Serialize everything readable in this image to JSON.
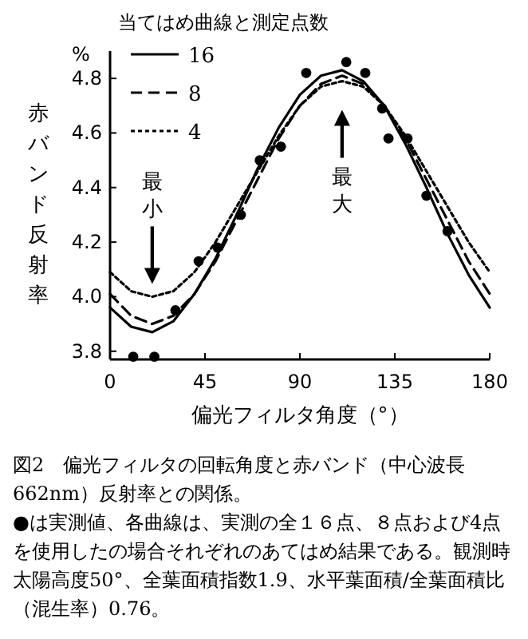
{
  "chart_data": {
    "type": "line",
    "legend_title": "当てはめ曲線と測定点数",
    "ylabel": "赤バンド反射率",
    "xlabel": "偏光フィルタ角度（°）",
    "x": [
      0,
      10,
      20,
      30,
      40,
      50,
      60,
      70,
      80,
      90,
      100,
      110,
      120,
      130,
      140,
      150,
      160,
      170,
      180
    ],
    "series": [
      {
        "name": "16",
        "color": "#000000",
        "line_style": "solid",
        "values": [
          3.96,
          3.89,
          3.87,
          3.91,
          4.01,
          4.14,
          4.3,
          4.47,
          4.62,
          4.74,
          4.81,
          4.83,
          4.79,
          4.7,
          4.56,
          4.4,
          4.23,
          4.08,
          3.96
        ]
      },
      {
        "name": "8",
        "color": "#000000",
        "line_style": "dashed",
        "values": [
          4.01,
          3.93,
          3.9,
          3.93,
          4.01,
          4.13,
          4.28,
          4.43,
          4.58,
          4.7,
          4.78,
          4.81,
          4.78,
          4.7,
          4.58,
          4.43,
          4.28,
          4.13,
          4.01
        ]
      },
      {
        "name": "4",
        "color": "#000000",
        "line_style": "dotted",
        "values": [
          4.09,
          4.02,
          4.0,
          4.02,
          4.09,
          4.2,
          4.33,
          4.46,
          4.59,
          4.7,
          4.77,
          4.79,
          4.77,
          4.7,
          4.59,
          4.46,
          4.33,
          4.2,
          4.09
        ]
      },
      {
        "type": "scatter",
        "color": "#000000",
        "marker": "circle",
        "x": [
          11,
          21,
          31,
          42,
          51,
          62,
          71,
          81,
          93,
          112,
          121,
          129,
          132,
          141,
          150,
          160
        ],
        "values": [
          3.78,
          3.78,
          3.95,
          4.13,
          4.18,
          4.3,
          4.5,
          4.55,
          4.82,
          4.86,
          4.82,
          4.69,
          4.58,
          4.58,
          4.37,
          4.24
        ]
      }
    ],
    "xlim": [
      0,
      180
    ],
    "xticks": [
      0,
      45,
      90,
      135,
      180
    ],
    "ylim": [
      3.77,
      4.9
    ],
    "yticks": [
      {
        "value": 3.8,
        "label": "3.8"
      },
      {
        "value": 4.0,
        "label": "4.0"
      },
      {
        "value": 4.2,
        "label": "4.2"
      },
      {
        "value": 4.4,
        "label": "4.4"
      },
      {
        "value": 4.6,
        "label": "4.6"
      },
      {
        "value": 4.8,
        "label": "4.8"
      }
    ],
    "legend": "top left",
    "marker": "none",
    "annotations": [
      "%",
      "最小",
      "最大",
      "図2　偏光フィルタの回転角度と赤バンド（中心波長662nm）反射率との関係。",
      "●は実測値、各曲線は、実測の全１６点、８点および4点を使用したの場合それぞれのあてはめ結果である。観測時太陽高度50°、全葉面積指数1.9、水平葉面積/全葉面積比（混生率）0.76。"
    ]
  }
}
